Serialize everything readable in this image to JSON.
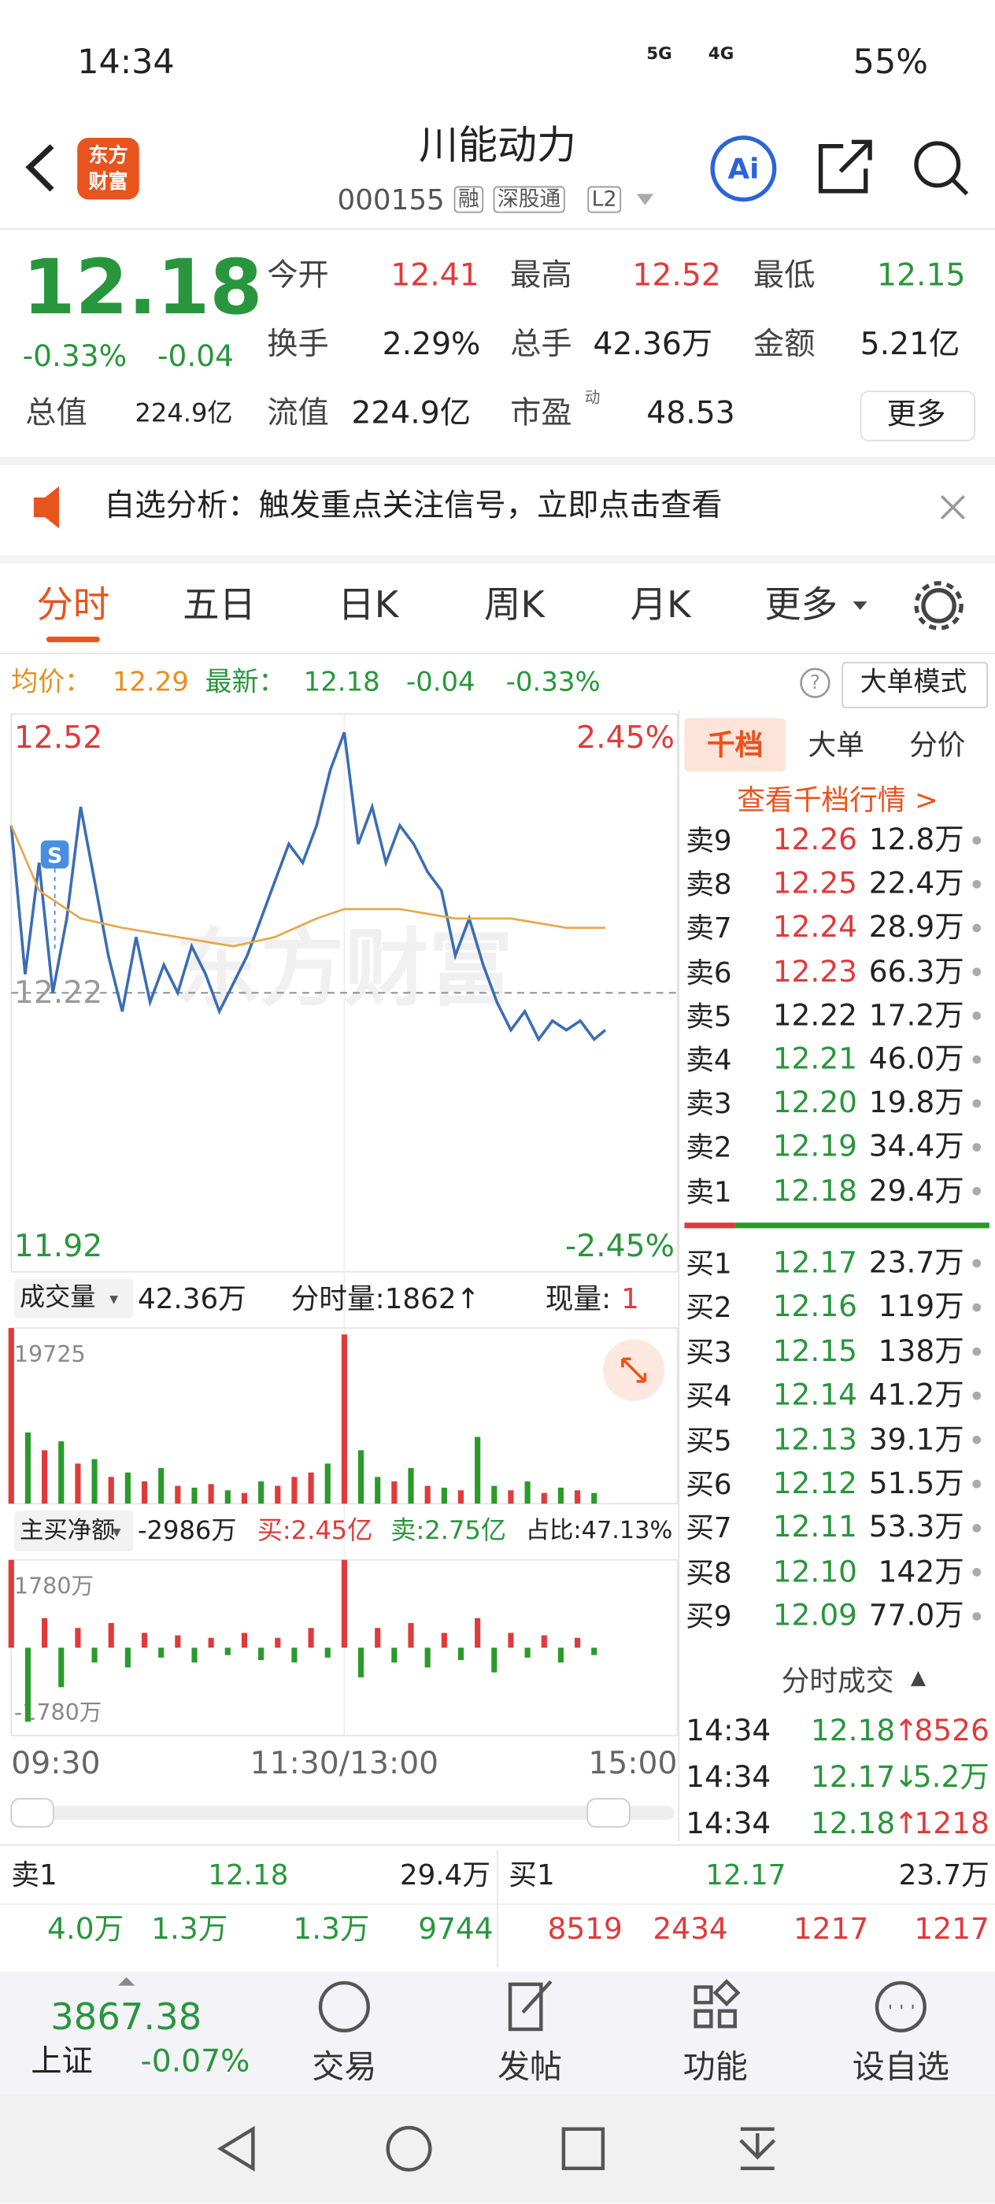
{
  "status_bar": {
    "time": "14:34",
    "network": [
      "5G",
      "4G"
    ],
    "battery": "55%"
  },
  "header": {
    "logo": [
      "东方",
      "财富"
    ],
    "title": "川能动力",
    "code": "000155",
    "tags": [
      "融",
      "深股通",
      "L2"
    ],
    "ai": "Ai"
  },
  "quote": {
    "price": "12.18",
    "change_pct": "-0.33%",
    "change": "-0.04",
    "stats": [
      {
        "label": "今开",
        "value": "12.41"
      },
      {
        "label": "最高",
        "value": "12.52"
      },
      {
        "label": "最低",
        "value": "12.15"
      },
      {
        "label": "换手",
        "value": "2.29%"
      },
      {
        "label": "总手",
        "value": "42.36万"
      },
      {
        "label": "金额",
        "value": "5.21亿"
      },
      {
        "label": "总值",
        "value": "224.9亿"
      },
      {
        "label": "流值",
        "value": "224.9亿"
      },
      {
        "label": "市盈",
        "value": "48.53"
      }
    ],
    "pe_superscript": "动",
    "more": "更多"
  },
  "banner": {
    "text": "自选分析：触发重点关注信号，立即点击查看"
  },
  "tabs": [
    "分时",
    "五日",
    "日K",
    "周K",
    "月K",
    "更多"
  ],
  "info_line": {
    "avg_label": "均价：",
    "avg": "12.29",
    "last_label": "最新：",
    "last": "12.18",
    "change": "-0.04",
    "change_pct": "-0.33%",
    "mode_button": "大单模式"
  },
  "chart_data": [
    {
      "type": "line",
      "watermark": "东方财富",
      "annotations": [
        "S"
      ],
      "xlim": [
        0,
        240
      ],
      "xticks": [
        {
          "value": 0,
          "label": "09:30"
        },
        {
          "value": 120,
          "label": "11:30/13:00"
        },
        {
          "value": 240,
          "label": "15:00"
        }
      ],
      "ylim": [
        11.92,
        12.52
      ],
      "yticks": [
        12.52,
        12.22,
        11.92
      ],
      "y2lim": [
        -2.45,
        2.45
      ],
      "y2ticks": [
        {
          "value": 2.45,
          "label": "2.45%"
        },
        {
          "value": -2.45,
          "label": "-2.45%"
        }
      ],
      "series": [
        {
          "color": "#3b6db3",
          "x": [
            0,
            5,
            10,
            15,
            20,
            25,
            30,
            35,
            40,
            45,
            50,
            55,
            60,
            65,
            70,
            75,
            80,
            85,
            90,
            95,
            100,
            105,
            110,
            115,
            120,
            125,
            130,
            135,
            140,
            145,
            150,
            155,
            160,
            165,
            170,
            175,
            180,
            185,
            190,
            195,
            200,
            205,
            210,
            214
          ],
          "values": [
            12.4,
            12.24,
            12.36,
            12.22,
            12.3,
            12.42,
            12.34,
            12.26,
            12.2,
            12.28,
            12.21,
            12.25,
            12.22,
            12.27,
            12.24,
            12.2,
            12.23,
            12.26,
            12.3,
            12.34,
            12.38,
            12.36,
            12.4,
            12.46,
            12.5,
            12.38,
            12.42,
            12.36,
            12.4,
            12.38,
            12.35,
            12.33,
            12.26,
            12.3,
            12.25,
            12.21,
            12.18,
            12.2,
            12.17,
            12.19,
            12.18,
            12.19,
            12.17,
            12.18
          ]
        },
        {
          "color": "#e5a84a",
          "x": [
            0,
            10,
            25,
            40,
            60,
            80,
            95,
            110,
            120,
            140,
            160,
            180,
            200,
            214
          ],
          "values": [
            12.4,
            12.33,
            12.3,
            12.29,
            12.28,
            12.27,
            12.28,
            12.3,
            12.31,
            12.31,
            12.3,
            12.3,
            12.29,
            12.29
          ]
        }
      ]
    },
    {
      "type": "bar",
      "xlim": [
        0,
        240
      ],
      "ylim": [
        0,
        19725
      ],
      "yticks": [
        19725
      ],
      "x": [
        0,
        6,
        12,
        18,
        24,
        30,
        36,
        42,
        48,
        54,
        60,
        66,
        72,
        78,
        84,
        90,
        96,
        102,
        108,
        114,
        120,
        126,
        132,
        138,
        144,
        150,
        156,
        162,
        168,
        174,
        180,
        186,
        192,
        198,
        204,
        210
      ],
      "values": [
        19725,
        8000,
        6000,
        7000,
        4500,
        5000,
        3000,
        3500,
        2500,
        4000,
        2000,
        1800,
        2200,
        1500,
        1200,
        2500,
        2000,
        3000,
        3500,
        4500,
        19000,
        6000,
        3000,
        2500,
        4000,
        2000,
        1800,
        1500,
        7500,
        2000,
        1500,
        2500,
        1200,
        1800,
        1500,
        1200
      ],
      "colors": [
        "#e03a3a",
        "#2a9a2a",
        "#e03a3a",
        "#2a9a2a",
        "#e03a3a",
        "#2a9a2a",
        "#e03a3a",
        "#2a9a2a",
        "#e03a3a",
        "#2a9a2a",
        "#e03a3a",
        "#2a9a2a",
        "#e03a3a",
        "#2a9a2a",
        "#e03a3a",
        "#2a9a2a",
        "#e03a3a",
        "#e03a3a",
        "#e03a3a",
        "#2a9a2a",
        "#e03a3a",
        "#2a9a2a",
        "#2a9a2a",
        "#e03a3a",
        "#2a9a2a",
        "#e03a3a",
        "#2a9a2a",
        "#e03a3a",
        "#2a9a2a",
        "#2a9a2a",
        "#e03a3a",
        "#2a9a2a",
        "#e03a3a",
        "#2a9a2a",
        "#e03a3a",
        "#2a9a2a"
      ]
    },
    {
      "type": "bar",
      "xlim": [
        0,
        240
      ],
      "ylim": [
        -1780,
        1780
      ],
      "yticks": [
        {
          "value": 1780,
          "label": "1780万"
        },
        {
          "value": -1780,
          "label": "-1780万"
        }
      ],
      "x": [
        0,
        6,
        12,
        18,
        24,
        30,
        36,
        42,
        48,
        54,
        60,
        66,
        72,
        78,
        84,
        90,
        96,
        102,
        108,
        114,
        120,
        126,
        132,
        138,
        144,
        150,
        156,
        162,
        168,
        174,
        180,
        186,
        192,
        198,
        204,
        210
      ],
      "values": [
        1780,
        -1500,
        600,
        -800,
        400,
        -300,
        500,
        -400,
        300,
        -200,
        250,
        -300,
        200,
        -150,
        300,
        -250,
        200,
        -300,
        400,
        -200,
        1780,
        -600,
        400,
        -300,
        500,
        -400,
        300,
        -250,
        600,
        -500,
        300,
        -200,
        250,
        -300,
        200,
        -150
      ],
      "colors": [
        "#e03a3a",
        "#2a9a2a",
        "#e03a3a",
        "#2a9a2a",
        "#e03a3a",
        "#2a9a2a",
        "#e03a3a",
        "#2a9a2a",
        "#e03a3a",
        "#2a9a2a",
        "#e03a3a",
        "#2a9a2a",
        "#e03a3a",
        "#2a9a2a",
        "#e03a3a",
        "#2a9a2a",
        "#e03a3a",
        "#2a9a2a",
        "#e03a3a",
        "#2a9a2a",
        "#e03a3a",
        "#2a9a2a",
        "#e03a3a",
        "#2a9a2a",
        "#e03a3a",
        "#2a9a2a",
        "#e03a3a",
        "#2a9a2a",
        "#e03a3a",
        "#2a9a2a",
        "#e03a3a",
        "#2a9a2a",
        "#e03a3a",
        "#2a9a2a",
        "#e03a3a",
        "#2a9a2a"
      ]
    }
  ],
  "volume_header": {
    "selector": "成交量",
    "total": "42.36万",
    "tick_volume": "分时量:1862↑",
    "current_label": "现量:",
    "current": "1"
  },
  "flow_header": {
    "selector": "主买净额",
    "net": "-2986万",
    "buy": "买:2.45亿",
    "sell": "卖:2.75亿",
    "ratio": "占比:47.13%"
  },
  "order_book": {
    "tabs": [
      "千档",
      "大单",
      "分价"
    ],
    "link": "查看千档行情 >",
    "asks": [
      {
        "label": "卖9",
        "price": "12.26",
        "volume": "12.8万"
      },
      {
        "label": "卖8",
        "price": "12.25",
        "volume": "22.4万"
      },
      {
        "label": "卖7",
        "price": "12.24",
        "volume": "28.9万"
      },
      {
        "label": "卖6",
        "price": "12.23",
        "volume": "66.3万"
      },
      {
        "label": "卖5",
        "price": "12.22",
        "volume": "17.2万"
      },
      {
        "label": "卖4",
        "price": "12.21",
        "volume": "46.0万"
      },
      {
        "label": "卖3",
        "price": "12.20",
        "volume": "19.8万"
      },
      {
        "label": "卖2",
        "price": "12.19",
        "volume": "34.4万"
      },
      {
        "label": "卖1",
        "price": "12.18",
        "volume": "29.4万"
      }
    ],
    "bids": [
      {
        "label": "买1",
        "price": "12.17",
        "volume": "23.7万"
      },
      {
        "label": "买2",
        "price": "12.16",
        "volume": "119万"
      },
      {
        "label": "买3",
        "price": "12.15",
        "volume": "138万"
      },
      {
        "label": "买4",
        "price": "12.14",
        "volume": "41.2万"
      },
      {
        "label": "买5",
        "price": "12.13",
        "volume": "39.1万"
      },
      {
        "label": "买6",
        "price": "12.12",
        "volume": "51.5万"
      },
      {
        "label": "买7",
        "price": "12.11",
        "volume": "53.3万"
      },
      {
        "label": "买8",
        "price": "12.10",
        "volume": "142万"
      },
      {
        "label": "买9",
        "price": "12.09",
        "volume": "77.0万"
      }
    ]
  },
  "trades": {
    "title": "分时成交",
    "rows": [
      {
        "time": "14:34",
        "price": "12.18",
        "arrow": "↑",
        "volume": "8526"
      },
      {
        "time": "14:34",
        "price": "12.17",
        "arrow": "↓",
        "volume": "5.2万"
      },
      {
        "time": "14:34",
        "price": "12.18",
        "arrow": "↑",
        "volume": "1218"
      }
    ]
  },
  "summary": {
    "sell": {
      "label": "卖1",
      "price": "12.18",
      "volume": "29.4万"
    },
    "buy": {
      "label": "买1",
      "price": "12.17",
      "volume": "23.7万"
    },
    "sell_sizes": [
      "4.0万",
      "1.3万",
      "1.3万",
      "9744"
    ],
    "buy_sizes": [
      "8519",
      "2434",
      "1217",
      "1217"
    ]
  },
  "footer": {
    "index_value": "3867.38",
    "index_name": "上证",
    "index_change": "-0.07%",
    "buttons": [
      "交易",
      "发帖",
      "功能",
      "设自选"
    ]
  }
}
